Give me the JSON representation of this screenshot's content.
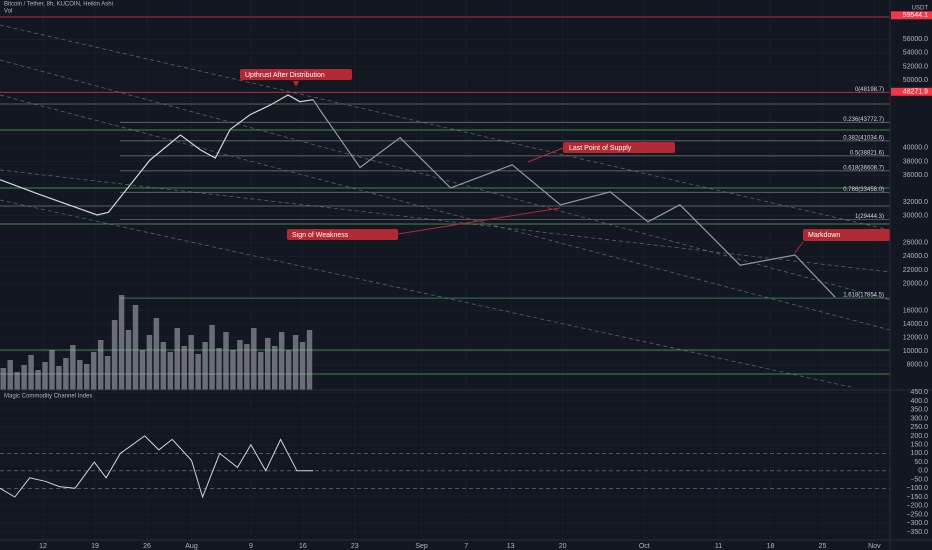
{
  "chart_data": {
    "type": "line",
    "title": "Bitcoin / Tether, 8h, KUCOIN, Heikin Ashi",
    "subtitle": "Vol",
    "currency": "USDT",
    "xlim": [
      -5.8,
      114.1
    ],
    "xticks": [
      {
        "value": 0,
        "label": "12"
      },
      {
        "value": 7,
        "label": "19"
      },
      {
        "value": 14,
        "label": "26"
      },
      {
        "value": 20,
        "label": "Aug"
      },
      {
        "value": 28,
        "label": "9"
      },
      {
        "value": 35,
        "label": "16"
      },
      {
        "value": 42,
        "label": "23"
      },
      {
        "value": 51,
        "label": "Sep"
      },
      {
        "value": 57,
        "label": "7"
      },
      {
        "value": 63,
        "label": "13"
      },
      {
        "value": 70,
        "label": "20"
      },
      {
        "value": 81,
        "label": "Oct"
      },
      {
        "value": 91,
        "label": "11"
      },
      {
        "value": 98,
        "label": "18"
      },
      {
        "value": 105,
        "label": "25"
      },
      {
        "value": 112,
        "label": "Nov"
      }
    ],
    "ylim": [
      4300,
      61800
    ],
    "yticks": [
      {
        "value": 56000,
        "label": "56000.0"
      },
      {
        "value": 54000,
        "label": "54000.0"
      },
      {
        "value": 52000,
        "label": "52000.0"
      },
      {
        "value": 50000,
        "label": "50000.0"
      },
      {
        "value": 40000,
        "label": "40000.0"
      },
      {
        "value": 38000,
        "label": "38000.0"
      },
      {
        "value": 36000,
        "label": "36000.0"
      },
      {
        "value": 32000,
        "label": "32000.0"
      },
      {
        "value": 30000,
        "label": "30000.0"
      },
      {
        "value": 26000,
        "label": "26000.0"
      },
      {
        "value": 24000,
        "label": "24000.0"
      },
      {
        "value": 22000,
        "label": "22000.0"
      },
      {
        "value": 20000,
        "label": "20000.0"
      },
      {
        "value": 16000,
        "label": "16000.0"
      },
      {
        "value": 14000,
        "label": "14000.0"
      },
      {
        "value": 12000,
        "label": "12000.0"
      },
      {
        "value": 10000,
        "label": "10000.0"
      },
      {
        "value": 8000,
        "label": "8000.0"
      }
    ],
    "series": [
      {
        "color": "#d1d4dc",
        "x": [
          -5.8,
          -0.4,
          7.3,
          8.8,
          11.7,
          14.4,
          18.5,
          21.2,
          23.2,
          25.2,
          27.9,
          30.6,
          33.0,
          34.6,
          36.4
        ],
        "values": [
          35300,
          33100,
          30100,
          30500,
          34500,
          38200,
          41900,
          39700,
          38500,
          42700,
          44900,
          46300,
          47800,
          46800,
          47100
        ]
      },
      {
        "color": "#9598a1",
        "x": [
          36.4,
          37.3,
          42.7,
          48.1,
          54.9,
          63.2,
          69.7,
          76.4,
          81.5,
          85.8,
          93.9,
          101.3,
          106.7
        ],
        "values": [
          47100,
          45600,
          37100,
          41500,
          34100,
          37500,
          31600,
          33500,
          29100,
          31600,
          22700,
          24200,
          18000
        ]
      }
    ],
    "levels": [
      {
        "value": 48198.7,
        "label": "0(48198.7)",
        "color": "#f23645"
      },
      {
        "value": 43772.7,
        "label": "0.236(43772.7)",
        "color": "#787b86"
      },
      {
        "value": 41034.6,
        "label": "0.382(41034.6)",
        "color": "#787b86"
      },
      {
        "value": 38821.6,
        "label": "0.5(38821.6)",
        "color": "#787b86"
      },
      {
        "value": 36608.7,
        "label": "0.618(36608.7)",
        "color": "#787b86"
      },
      {
        "value": 33458.0,
        "label": "0.786(33458.0)",
        "color": "#787b86"
      },
      {
        "value": 29444.3,
        "label": "1(29444.3)",
        "color": "#787b86"
      },
      {
        "value": 17854.5,
        "label": "1.618(17854.5)",
        "color": "#4caf50"
      }
    ],
    "price_labels": [
      {
        "value": 59544.1,
        "label": "59544.1",
        "color": "#f23645"
      },
      {
        "value": 48271.9,
        "label": "48271.9",
        "color": "#f23645"
      }
    ],
    "annotations": [
      "Upthrust After Distribution",
      "Last Point of Supply",
      "Sign of Weakness",
      "Markdown"
    ],
    "volume": {
      "color": "#b2b5be",
      "ylim": [
        0,
        100
      ],
      "values": [
        22,
        30,
        18,
        25,
        35,
        20,
        28,
        40,
        24,
        32,
        45,
        30,
        26,
        38,
        50,
        34,
        70,
        95,
        60,
        85,
        40,
        55,
        72,
        48,
        38,
        62,
        44,
        55,
        36,
        48,
        65,
        42,
        58,
        40,
        50,
        46,
        62,
        38,
        52,
        44,
        58,
        40,
        55,
        48,
        60
      ]
    },
    "cci": {
      "title": "Magic Commodity Channel Index",
      "ylim": [
        -396,
        463
      ],
      "yticks": [
        {
          "value": 450,
          "label": "450.0"
        },
        {
          "value": 400,
          "label": "400.0"
        },
        {
          "value": 350,
          "label": "350.0"
        },
        {
          "value": 300,
          "label": "300.0"
        },
        {
          "value": 250,
          "label": "250.0"
        },
        {
          "value": 200,
          "label": "200.0"
        },
        {
          "value": 150,
          "label": "150.0"
        },
        {
          "value": 100,
          "label": "100.0"
        },
        {
          "value": 50,
          "label": "50.0"
        },
        {
          "value": 0,
          "label": "0.0"
        },
        {
          "value": -50,
          "label": "−50.0"
        },
        {
          "value": -100,
          "label": "−100.0"
        },
        {
          "value": -150,
          "label": "−150.0"
        },
        {
          "value": -200,
          "label": "−200.0"
        },
        {
          "value": -250,
          "label": "−250.0"
        },
        {
          "value": -300,
          "label": "−300.0"
        },
        {
          "value": -350,
          "label": "−350.0"
        }
      ],
      "color": "#d1d4dc",
      "x": [
        -5.8,
        -3.8,
        -1.8,
        0.3,
        2.2,
        4.3,
        6.9,
        8.5,
        10.4,
        13.7,
        15.6,
        17.4,
        20.0,
        21.5,
        23.8,
        26.2,
        28.0,
        30.0,
        32.0,
        34.2,
        36.4
      ],
      "values": [
        -100,
        -150,
        -40,
        -60,
        -90,
        -100,
        50,
        -40,
        100,
        200,
        120,
        180,
        60,
        -150,
        100,
        20,
        150,
        0,
        180,
        0,
        0
      ]
    }
  }
}
